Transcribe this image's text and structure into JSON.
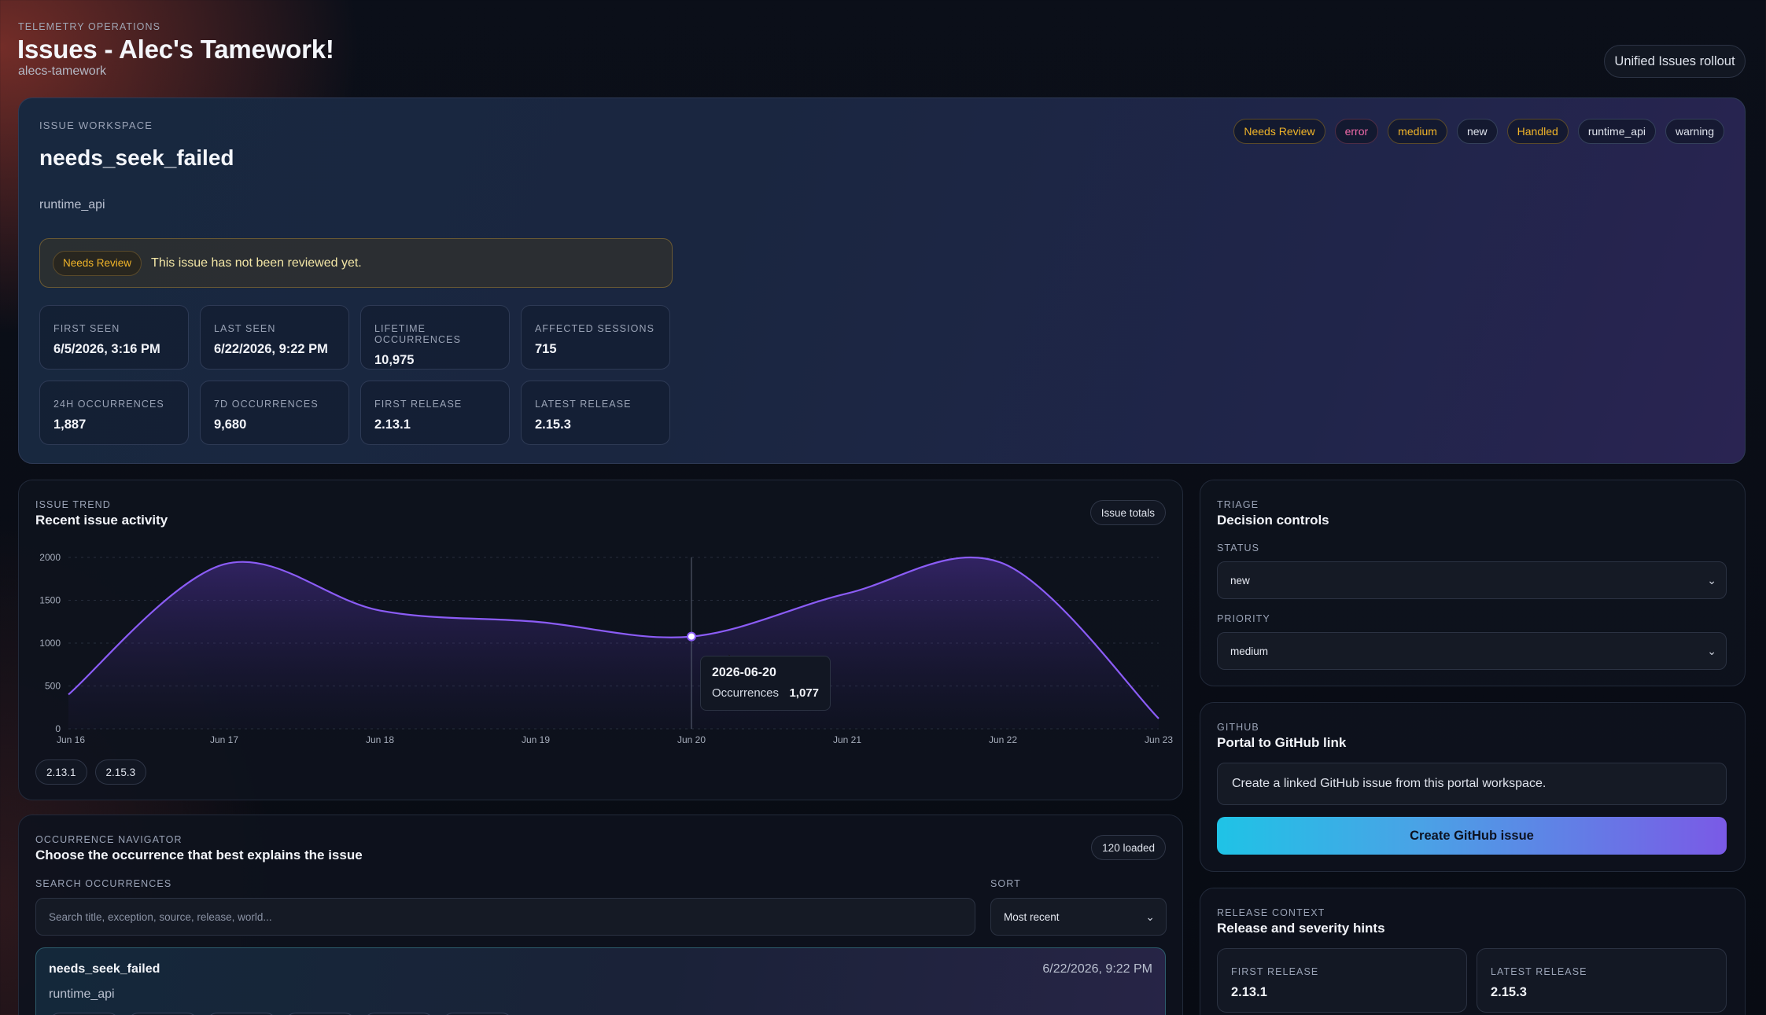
{
  "header": {
    "eyebrow": "TELEMETRY OPERATIONS",
    "title": "Issues - Alec's Tamework!",
    "slug": "alecs-tamework",
    "rollout_button": "Unified Issues rollout"
  },
  "workspace": {
    "eyebrow": "ISSUE WORKSPACE",
    "title": "needs_seek_failed",
    "source": "runtime_api",
    "tags": [
      {
        "label": "Needs Review",
        "tone": "amber"
      },
      {
        "label": "error",
        "tone": "pink"
      },
      {
        "label": "medium",
        "tone": "amber"
      },
      {
        "label": "new",
        "tone": "neutral"
      },
      {
        "label": "Handled",
        "tone": "amber"
      },
      {
        "label": "runtime_api",
        "tone": "neutral"
      },
      {
        "label": "warning",
        "tone": "neutral"
      }
    ],
    "review_badge": "Needs Review",
    "review_text": "This issue has not been reviewed yet.",
    "stats": [
      {
        "label": "FIRST SEEN",
        "value": "6/5/2026, 3:16 PM"
      },
      {
        "label": "LAST SEEN",
        "value": "6/22/2026, 9:22 PM"
      },
      {
        "label": "LIFETIME OCCURRENCES",
        "value": "10,975"
      },
      {
        "label": "AFFECTED SESSIONS",
        "value": "715"
      },
      {
        "label": "24H OCCURRENCES",
        "value": "1,887"
      },
      {
        "label": "7D OCCURRENCES",
        "value": "9,680"
      },
      {
        "label": "FIRST RELEASE",
        "value": "2.13.1"
      },
      {
        "label": "LATEST RELEASE",
        "value": "2.15.3"
      }
    ]
  },
  "trend": {
    "eyebrow": "ISSUE TREND",
    "title": "Recent issue activity",
    "toggle": "Issue totals",
    "releases": [
      "2.13.1",
      "2.15.3"
    ],
    "tooltip": {
      "date": "2026-06-20",
      "label": "Occurrences",
      "value": "1,077"
    }
  },
  "chart_data": {
    "type": "area",
    "x": [
      "Jun 16",
      "Jun 17",
      "Jun 18",
      "Jun 19",
      "Jun 20",
      "Jun 21",
      "Jun 22",
      "Jun 23"
    ],
    "series": [
      {
        "values": [
          400,
          1920,
          1380,
          1250,
          1077,
          1580,
          1930,
          120
        ]
      }
    ],
    "ylim": [
      0,
      2000
    ],
    "yticks": [
      0,
      500,
      1000,
      1500,
      2000
    ],
    "grid": true,
    "color": "#8b5cf6",
    "highlight_index": 4
  },
  "navigator": {
    "eyebrow": "OCCURRENCE NAVIGATOR",
    "title": "Choose the occurrence that best explains the issue",
    "loaded": "120 loaded",
    "search_label": "SEARCH OCCURRENCES",
    "search_placeholder": "Search title, exception, source, release, world...",
    "sort_label": "SORT",
    "sort_value": "Most recent",
    "item": {
      "title": "needs_seek_failed",
      "time": "6/22/2026, 9:22 PM",
      "source": "runtime_api"
    }
  },
  "triage": {
    "eyebrow": "TRIAGE",
    "title": "Decision controls",
    "status_label": "STATUS",
    "status_value": "new",
    "priority_label": "PRIORITY",
    "priority_value": "medium"
  },
  "github": {
    "eyebrow": "GITHUB",
    "title": "Portal to GitHub link",
    "description": "Create a linked GitHub issue from this portal workspace.",
    "button": "Create GitHub issue"
  },
  "release_context": {
    "eyebrow": "RELEASE CONTEXT",
    "title": "Release and severity hints",
    "first_label": "FIRST RELEASE",
    "first_value": "2.13.1",
    "latest_label": "LATEST RELEASE",
    "latest_value": "2.15.3"
  },
  "colors": {
    "accent": "#8b5cf6",
    "warning": "#f0b429",
    "error": "#f06aa8",
    "cyan": "#1fc3e6"
  }
}
